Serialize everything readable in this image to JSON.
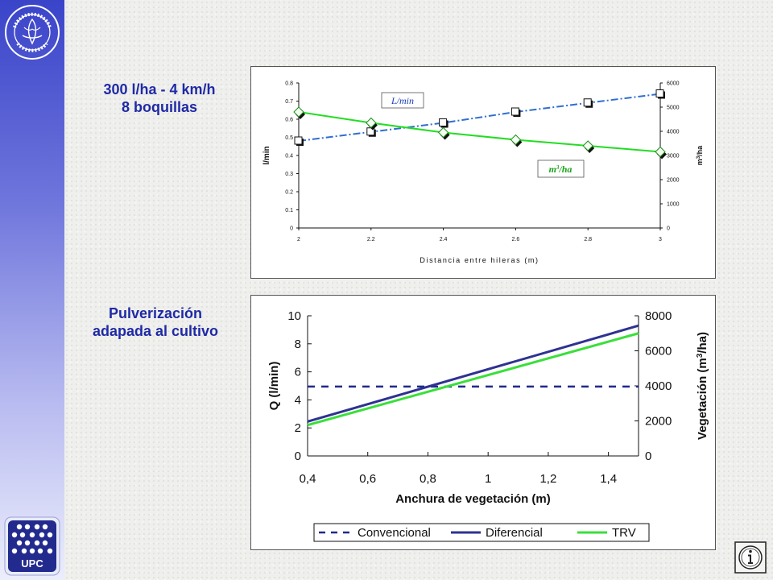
{
  "captions": {
    "top_line1": "300 l/ha - 4 km/h",
    "top_line2": "8 boquillas",
    "bottom_line1": "Pulverización",
    "bottom_line2": "adapada al cultivo"
  },
  "sidebar": {
    "seal_top_text": "ESCOLA SUPERIOR D'AGRICULTURA",
    "seal_bottom_text": "BARCELONA",
    "seal_year": "MCMXI",
    "upc_label": "UPC"
  },
  "colors": {
    "sidebar_top": "#3a44c9",
    "caption": "#1f2aa6",
    "lmin_series": "#2f6fd0",
    "m3ha_series": "#22dd22",
    "convencional": "#1e2a8c",
    "diferencial": "#2e3292",
    "trv": "#3adf3a"
  },
  "chart_data": [
    {
      "type": "line",
      "xlabel": "Distancia entre hileras (m)",
      "ylabel": "l/min",
      "y2label": "m3/ha",
      "x": [
        2,
        2.2,
        2.4,
        2.6,
        2.8,
        3
      ],
      "xticks": [
        "2",
        "2.2",
        "2.4",
        "2.6",
        "2.8",
        "3"
      ],
      "ylim": [
        0,
        0.8
      ],
      "yticks": [
        "0",
        "0.1",
        "0.2",
        "0.3",
        "0.4",
        "0.5",
        "0.6",
        "0.7",
        "0.8"
      ],
      "y2lim": [
        0,
        6000
      ],
      "y2ticks": [
        "0",
        "1000",
        "2000",
        "3000",
        "4000",
        "5000",
        "6000"
      ],
      "grid": false,
      "series": [
        {
          "name": "L/min",
          "axis": "left",
          "style": "dash-dot",
          "marker": "square",
          "values": [
            0.48,
            0.53,
            0.58,
            0.64,
            0.69,
            0.74
          ]
        },
        {
          "name": "m3/ha",
          "axis": "right",
          "style": "solid",
          "marker": "diamond",
          "values": [
            4800,
            4350,
            3950,
            3650,
            3400,
            3150
          ]
        }
      ]
    },
    {
      "type": "line",
      "xlabel": "Anchura de vegetación (m)",
      "ylabel": "Q (l/min)",
      "y2label": "Vegetación (m3/ha)",
      "xlim": [
        0.4,
        1.5
      ],
      "xticks": [
        "0,4",
        "0,6",
        "0,8",
        "1",
        "1,2",
        "1,4"
      ],
      "ylim": [
        0,
        10
      ],
      "yticks": [
        "0",
        "2",
        "4",
        "6",
        "8",
        "10"
      ],
      "y2lim": [
        0,
        8000
      ],
      "y2ticks": [
        "0",
        "2000",
        "4000",
        "6000",
        "8000"
      ],
      "grid": false,
      "legend_position": "bottom",
      "series": [
        {
          "name": "Convencional",
          "axis": "left",
          "style": "dashed",
          "x": [
            0.4,
            1.5
          ],
          "values": [
            4.95,
            4.95
          ]
        },
        {
          "name": "Diferencial",
          "axis": "left",
          "style": "solid",
          "x": [
            0.4,
            1.5
          ],
          "values": [
            2.45,
            9.3
          ]
        },
        {
          "name": "TRV",
          "axis": "left",
          "style": "solid",
          "x": [
            0.4,
            1.5
          ],
          "values": [
            2.2,
            8.75
          ]
        }
      ]
    }
  ]
}
